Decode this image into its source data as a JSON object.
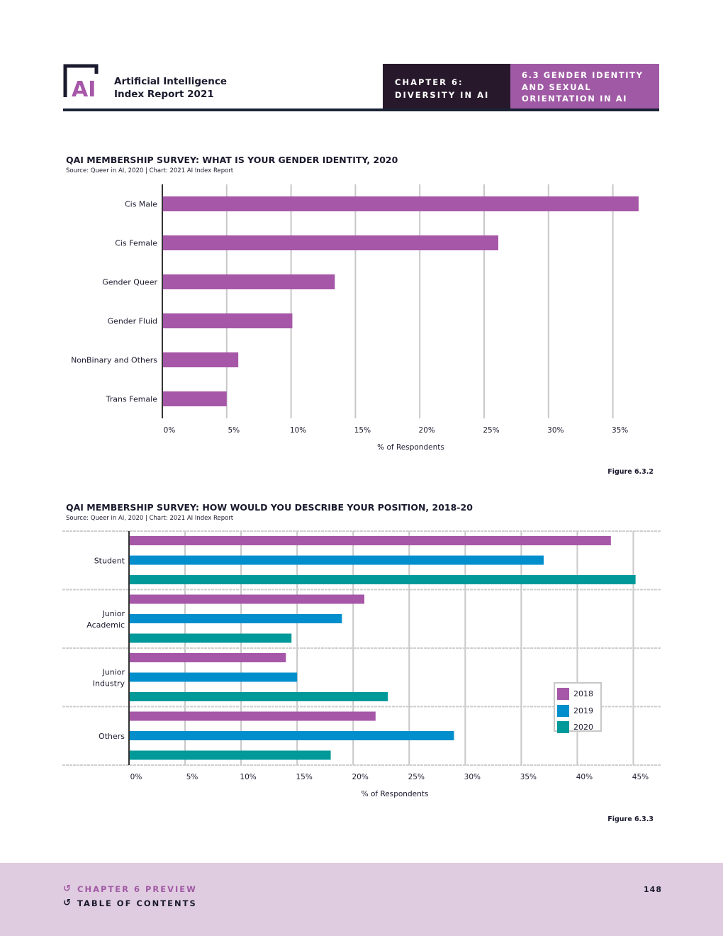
{
  "header": {
    "logo_text": "AI",
    "report_title_line1": "Artificial Intelligence",
    "report_title_line2": "Index Report 2021",
    "chapter_line1": "CHAPTER 6:",
    "chapter_line2": "DIVERSITY IN AI",
    "section_line1": "6.3 GENDER IDENTITY",
    "section_line2": "AND SEXUAL",
    "section_line3": "ORIENTATION IN AI"
  },
  "figures": {
    "figure1_label": "Figure 6.3.2",
    "figure2_label": "Figure 6.3.3"
  },
  "chart_data": [
    {
      "type": "bar",
      "orientation": "horizontal",
      "title": "QAI MEMBERSHIP SURVEY: WHAT IS YOUR GENDER IDENTITY, 2020",
      "source": "Source: Queer in AI, 2020 | Chart: 2021 AI Index Report",
      "categories": [
        "Cis Male",
        "Cis Female",
        "Gender Queer",
        "Gender Fluid",
        "NonBinary and Others",
        "Trans Female"
      ],
      "values": [
        37,
        26.1,
        13.4,
        10.1,
        5.9,
        5
      ],
      "xlabel": "% of Respondents",
      "ylabel": "",
      "xlim": [
        0,
        38.6
      ],
      "x_ticks": [
        0,
        5,
        10,
        15,
        20,
        25,
        30,
        35
      ],
      "x_tick_labels": [
        "0%",
        "5%",
        "10%",
        "15%",
        "20%",
        "25%",
        "30%",
        "35%"
      ],
      "color": "#a657a8",
      "grid": true
    },
    {
      "type": "bar",
      "orientation": "horizontal",
      "title": "QAI MEMBERSHIP SURVEY: HOW WOULD YOU DESCRIBE YOUR POSITION, 2018-20",
      "source": "Source: Queer in AI, 2020 | Chart: 2021 AI Index Report",
      "categories": [
        "Student",
        "Junior Academic",
        "Junior Industry",
        "Others"
      ],
      "category_lines": [
        [
          "Student"
        ],
        [
          "Junior",
          "Academic"
        ],
        [
          "Junior",
          "Industry"
        ],
        [
          "Others"
        ]
      ],
      "series": [
        {
          "name": "2018",
          "color": "#a657a8",
          "values": [
            43,
            21,
            14,
            22
          ]
        },
        {
          "name": "2019",
          "color": "#008fcc",
          "values": [
            37,
            19,
            15,
            29
          ]
        },
        {
          "name": "2020",
          "color": "#00999a",
          "values": [
            45.2,
            14.5,
            23.1,
            18
          ]
        }
      ],
      "xlabel": "% of Respondents",
      "ylabel": "",
      "xlim": [
        0,
        47.5
      ],
      "x_ticks": [
        0,
        5,
        10,
        15,
        20,
        25,
        30,
        35,
        40,
        45
      ],
      "x_tick_labels": [
        "0%",
        "5%",
        "10%",
        "15%",
        "20%",
        "25%",
        "30%",
        "35%",
        "40%",
        "45%"
      ],
      "legend_position": "bottom-right",
      "grid": true
    }
  ],
  "footer": {
    "chapter_preview": "CHAPTER 6 PREVIEW",
    "table_of_contents": "TABLE OF CONTENTS",
    "page_number": "148"
  }
}
